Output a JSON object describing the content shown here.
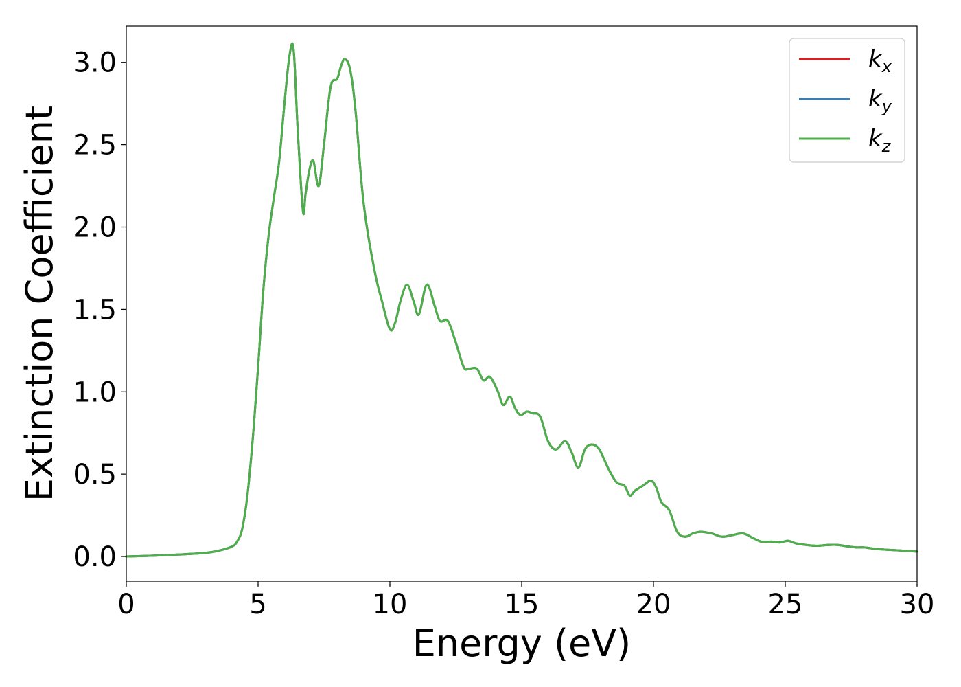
{
  "chart_data": {
    "type": "line",
    "title": "",
    "xlabel": "Energy (eV)",
    "ylabel": "Extinction Coefficient",
    "xlim": [
      0,
      30
    ],
    "ylim": [
      -0.15,
      3.22
    ],
    "xticks": [
      0,
      5,
      10,
      15,
      20,
      25,
      30
    ],
    "xtick_labels": [
      "0",
      "5",
      "10",
      "15",
      "20",
      "25",
      "30"
    ],
    "yticks": [
      0.0,
      0.5,
      1.0,
      1.5,
      2.0,
      2.5,
      3.0
    ],
    "ytick_labels": [
      "0.0",
      "0.5",
      "1.0",
      "1.5",
      "2.0",
      "2.5",
      "3.0"
    ],
    "grid": false,
    "legend_position": "top-right",
    "x": [
      0,
      1,
      2,
      3,
      3.5,
      4,
      4.2,
      4.4,
      4.6,
      4.8,
      5.0,
      5.2,
      5.4,
      5.6,
      5.8,
      6.0,
      6.2,
      6.35,
      6.5,
      6.7,
      6.8,
      6.95,
      7.1,
      7.3,
      7.5,
      7.75,
      8.0,
      8.15,
      8.3,
      8.5,
      8.7,
      9.0,
      9.4,
      9.7,
      10.0,
      10.2,
      10.4,
      10.65,
      10.9,
      11.1,
      11.4,
      11.7,
      11.9,
      12.2,
      12.5,
      12.8,
      13.0,
      13.3,
      13.55,
      13.8,
      14.1,
      14.3,
      14.55,
      14.75,
      14.95,
      15.2,
      15.4,
      15.7,
      16.0,
      16.3,
      16.65,
      16.9,
      17.15,
      17.4,
      17.65,
      17.9,
      18.1,
      18.3,
      18.6,
      18.9,
      19.1,
      19.3,
      19.6,
      19.9,
      20.1,
      20.3,
      20.6,
      20.9,
      21.2,
      21.5,
      21.8,
      22.2,
      22.6,
      23.0,
      23.4,
      23.8,
      24.1,
      24.5,
      24.8,
      25.1,
      25.4,
      25.8,
      26.2,
      26.6,
      27.0,
      27.4,
      27.7,
      28.0,
      28.5,
      29.0,
      29.5,
      30.0
    ],
    "series": [
      {
        "name": "k_x",
        "color": "#e41a1c",
        "values": [
          0.0,
          0.005,
          0.012,
          0.022,
          0.035,
          0.06,
          0.09,
          0.17,
          0.38,
          0.72,
          1.15,
          1.62,
          1.95,
          2.18,
          2.4,
          2.75,
          3.05,
          3.07,
          2.6,
          2.1,
          2.2,
          2.35,
          2.4,
          2.25,
          2.5,
          2.85,
          2.9,
          2.98,
          3.02,
          2.95,
          2.7,
          2.15,
          1.75,
          1.55,
          1.38,
          1.42,
          1.55,
          1.65,
          1.55,
          1.47,
          1.65,
          1.52,
          1.43,
          1.43,
          1.3,
          1.15,
          1.14,
          1.14,
          1.07,
          1.09,
          1.0,
          0.92,
          0.97,
          0.9,
          0.86,
          0.88,
          0.87,
          0.85,
          0.7,
          0.65,
          0.7,
          0.63,
          0.54,
          0.65,
          0.68,
          0.66,
          0.6,
          0.53,
          0.45,
          0.43,
          0.37,
          0.4,
          0.43,
          0.46,
          0.42,
          0.33,
          0.28,
          0.15,
          0.12,
          0.14,
          0.15,
          0.14,
          0.12,
          0.13,
          0.14,
          0.11,
          0.09,
          0.09,
          0.085,
          0.095,
          0.08,
          0.07,
          0.065,
          0.07,
          0.07,
          0.06,
          0.055,
          0.055,
          0.045,
          0.04,
          0.035,
          0.03
        ]
      },
      {
        "name": "k_y",
        "color": "#377eb8",
        "values": [
          0.0,
          0.005,
          0.012,
          0.022,
          0.035,
          0.06,
          0.09,
          0.17,
          0.38,
          0.72,
          1.15,
          1.62,
          1.95,
          2.18,
          2.4,
          2.75,
          3.05,
          3.07,
          2.6,
          2.1,
          2.2,
          2.35,
          2.4,
          2.25,
          2.5,
          2.85,
          2.9,
          2.98,
          3.02,
          2.95,
          2.7,
          2.15,
          1.75,
          1.55,
          1.38,
          1.42,
          1.55,
          1.65,
          1.55,
          1.47,
          1.65,
          1.52,
          1.43,
          1.43,
          1.3,
          1.15,
          1.14,
          1.14,
          1.07,
          1.09,
          1.0,
          0.92,
          0.97,
          0.9,
          0.86,
          0.88,
          0.87,
          0.85,
          0.7,
          0.65,
          0.7,
          0.63,
          0.54,
          0.65,
          0.68,
          0.66,
          0.6,
          0.53,
          0.45,
          0.43,
          0.37,
          0.4,
          0.43,
          0.46,
          0.42,
          0.33,
          0.28,
          0.15,
          0.12,
          0.14,
          0.15,
          0.14,
          0.12,
          0.13,
          0.14,
          0.11,
          0.09,
          0.09,
          0.085,
          0.095,
          0.08,
          0.07,
          0.065,
          0.07,
          0.07,
          0.06,
          0.055,
          0.055,
          0.045,
          0.04,
          0.035,
          0.03
        ]
      },
      {
        "name": "k_z",
        "color": "#4daf4a",
        "values": [
          0.0,
          0.005,
          0.012,
          0.022,
          0.035,
          0.06,
          0.09,
          0.17,
          0.38,
          0.72,
          1.15,
          1.62,
          1.95,
          2.18,
          2.4,
          2.75,
          3.05,
          3.07,
          2.6,
          2.1,
          2.2,
          2.35,
          2.4,
          2.25,
          2.5,
          2.85,
          2.9,
          2.98,
          3.02,
          2.95,
          2.7,
          2.15,
          1.75,
          1.55,
          1.38,
          1.42,
          1.55,
          1.65,
          1.55,
          1.47,
          1.65,
          1.52,
          1.43,
          1.43,
          1.3,
          1.15,
          1.14,
          1.14,
          1.07,
          1.09,
          1.0,
          0.92,
          0.97,
          0.9,
          0.86,
          0.88,
          0.87,
          0.85,
          0.7,
          0.65,
          0.7,
          0.63,
          0.54,
          0.65,
          0.68,
          0.66,
          0.6,
          0.53,
          0.45,
          0.43,
          0.37,
          0.4,
          0.43,
          0.46,
          0.42,
          0.33,
          0.28,
          0.15,
          0.12,
          0.14,
          0.15,
          0.14,
          0.12,
          0.13,
          0.14,
          0.11,
          0.09,
          0.09,
          0.085,
          0.095,
          0.08,
          0.07,
          0.065,
          0.07,
          0.07,
          0.06,
          0.055,
          0.055,
          0.045,
          0.04,
          0.035,
          0.03
        ]
      }
    ],
    "legend": [
      {
        "base": "k",
        "sub": "x",
        "color": "#e41a1c"
      },
      {
        "base": "k",
        "sub": "y",
        "color": "#377eb8"
      },
      {
        "base": "k",
        "sub": "z",
        "color": "#4daf4a"
      }
    ]
  }
}
